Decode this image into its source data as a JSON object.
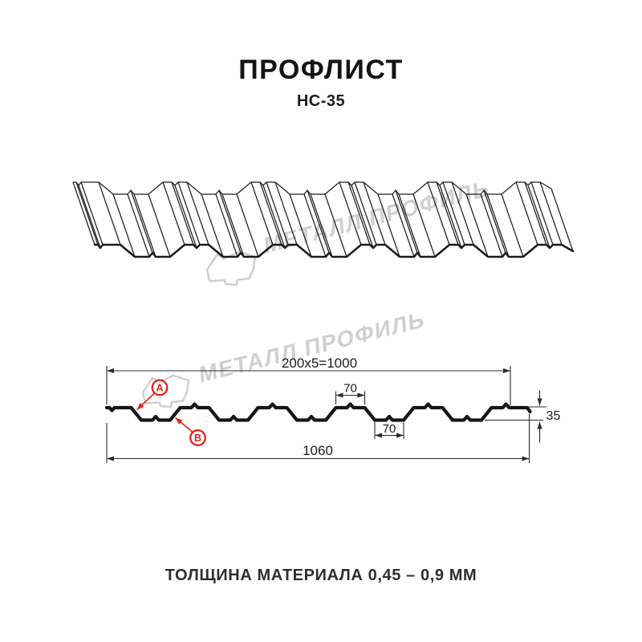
{
  "header": {
    "title": "ПРОФЛИСТ",
    "subtitle": "НС-35"
  },
  "watermark": {
    "brand": "МЕТАЛЛ ПРОФИЛЬ",
    "color": "#d0d0d0"
  },
  "diagram": {
    "dimensions": {
      "module": "200x5=1000",
      "crest_width": "70",
      "valley_width": "70",
      "height": "35",
      "overall_width": "1060"
    },
    "markers": {
      "a": "А",
      "b": "В"
    },
    "colors": {
      "line": "#1f1f1f",
      "dimension": "#2a2a2a",
      "accent_red": "#e2231a"
    }
  },
  "footer": {
    "note": "ТОЛЩИНА МАТЕРИАЛА 0,45 – 0,9 ММ"
  }
}
